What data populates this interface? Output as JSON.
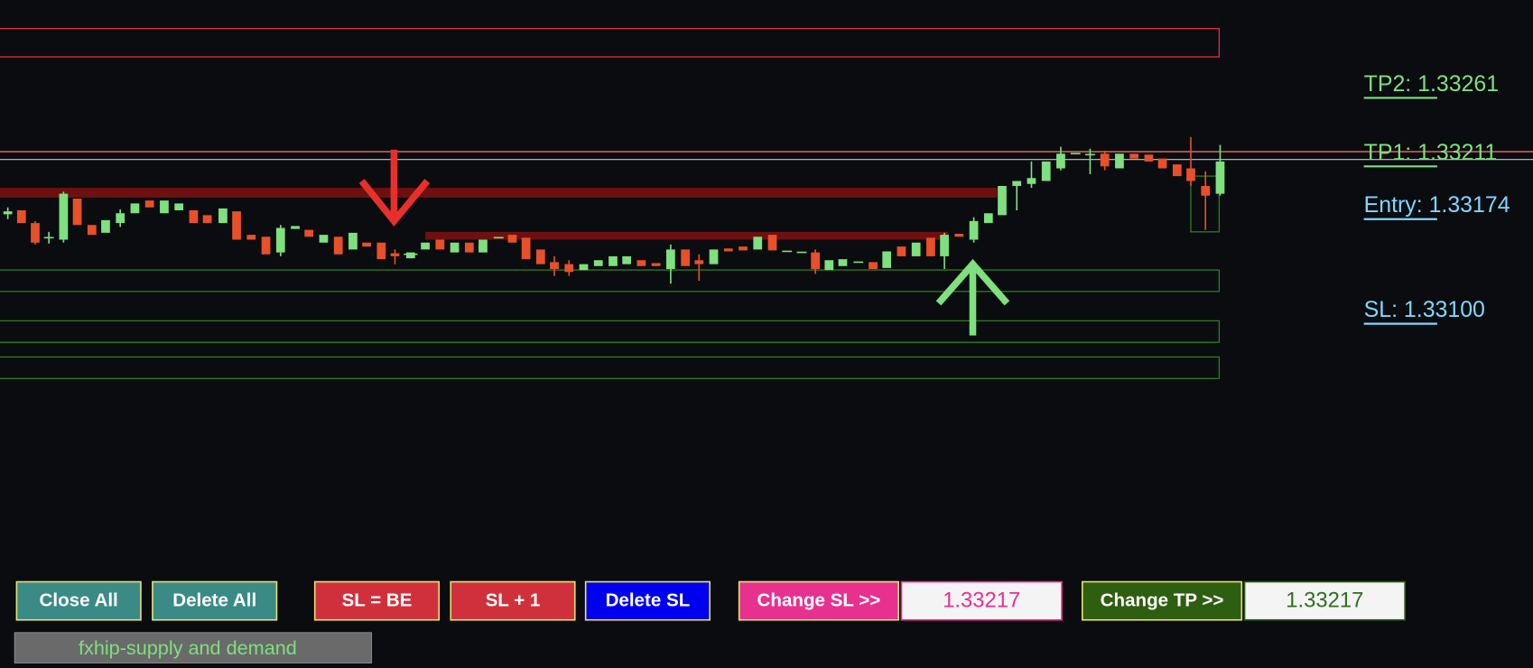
{
  "levels": [
    {
      "label": "TP2: 1.33261"
    },
    {
      "label": "TP1: 1.33211"
    },
    {
      "label": "Entry: 1.33174"
    },
    {
      "label": "SL: 1.33100"
    }
  ],
  "buttons": [
    "Close All",
    "Delete All",
    "SL = BE",
    "SL + 1",
    "Delete SL",
    "Change SL >>",
    "Change TP >>"
  ],
  "inputs": [
    "1.33217",
    "1.33217"
  ],
  "footer": "fxhip-supply and demand"
}
